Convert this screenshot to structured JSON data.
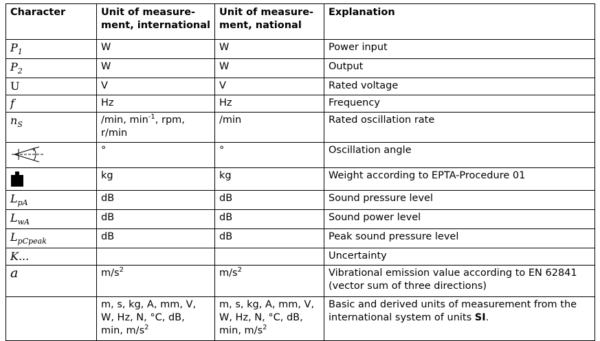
{
  "headers": {
    "character": "Character",
    "intl_line1": "Unit of measure-",
    "intl_line2": "ment, international",
    "natl_line1": "Unit of measure-",
    "natl_line2": "ment, national",
    "explanation": "Explanation"
  },
  "rows": [
    {
      "sym_main": "P",
      "sym_sub": "1",
      "intl": "W",
      "natl": "W",
      "expl": "Power input"
    },
    {
      "sym_main": "P",
      "sym_sub": "2",
      "intl": "W",
      "natl": "W",
      "expl": "Output"
    },
    {
      "sym_main": "U",
      "intl": "V",
      "natl": "V",
      "expl": "Rated voltage"
    },
    {
      "sym_main": "f",
      "intl": "Hz",
      "natl": "Hz",
      "expl": "Frequency"
    },
    {
      "sym_main": "n",
      "sym_sub": "S",
      "intl_a": "/min, min",
      "intl_sup": "-1",
      "intl_b": ", rpm,",
      "intl_c": "r/min",
      "natl": "/min",
      "expl": "Rated oscillation rate"
    },
    {
      "sym_icon": "oscillation-angle-icon",
      "intl": "°",
      "natl": "°",
      "expl": "Oscillation angle"
    },
    {
      "sym_icon": "weight-icon",
      "intl": "kg",
      "natl": "kg",
      "expl": "Weight according to EPTA-Procedure 01"
    },
    {
      "sym_main": "L",
      "sym_sub": "pA",
      "intl": "dB",
      "natl": "dB",
      "expl": "Sound pressure level"
    },
    {
      "sym_main": "L",
      "sym_sub": "wA",
      "intl": "dB",
      "natl": "dB",
      "expl": "Sound power level"
    },
    {
      "sym_main": "L",
      "sym_sub": "pCpeak",
      "intl": "dB",
      "natl": "dB",
      "expl": "Peak sound pressure level"
    },
    {
      "sym_main": "K...",
      "intl": "",
      "natl": "",
      "expl": "Uncertainty"
    },
    {
      "sym_main": "a",
      "intl_a": "m/s",
      "intl_sup": "2",
      "natl_a": "m/s",
      "natl_sup": "2",
      "expl_1": "Vibrational emission value according to EN 62841",
      "expl_2": "(vector sum of three directions)"
    },
    {
      "sym_main": "",
      "units_l1": "m, s, kg, A, mm, V,",
      "units_l2": "W, Hz, N, °C, dB,",
      "units_l3": "min, m/s",
      "units_sup": "2",
      "expl_1": "Basic and derived units of measurement from the",
      "expl_2a": "international system of units ",
      "expl_2b": "SI",
      "expl_2c": "."
    }
  ]
}
